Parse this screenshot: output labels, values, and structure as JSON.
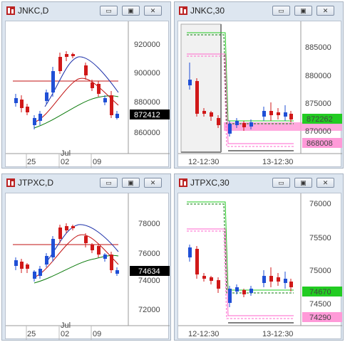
{
  "colors": {
    "up": "#1f4fd6",
    "down": "#d01818",
    "upper": "#1a2ea8",
    "lower": "#c01010",
    "base": "#0a7a0a",
    "alert": "#22cc22",
    "pink": "#ff9ad8"
  },
  "panels": [
    {
      "title": "JNKC,D",
      "yticks": [
        "920000",
        "900000",
        "880000",
        "860000"
      ],
      "xticks": [
        "25",
        "Jul",
        "02",
        "09"
      ],
      "price_tag": "872412"
    },
    {
      "title": "JNKC,30",
      "yticks": [
        "885000",
        "880000",
        "875000",
        "870000"
      ],
      "xticks": [
        "12-12:30",
        "13-12:30"
      ],
      "price_tag": "872262",
      "low_tag": "868008"
    },
    {
      "title": "JTPXC,D",
      "yticks": [
        "78000",
        "76000",
        "74000",
        "72000"
      ],
      "xticks": [
        "25",
        "Jul",
        "02",
        "09"
      ],
      "price_tag": "74634"
    },
    {
      "title": "JTPXC,30",
      "yticks": [
        "76000",
        "75500",
        "75000",
        "74500"
      ],
      "xticks": [
        "12-12:30",
        "13-12:30"
      ],
      "price_tag": "74670",
      "low_tag": "74290"
    }
  ],
  "window_buttons": {
    "minimize": "▭",
    "restore": "▣",
    "close": "✕"
  }
}
